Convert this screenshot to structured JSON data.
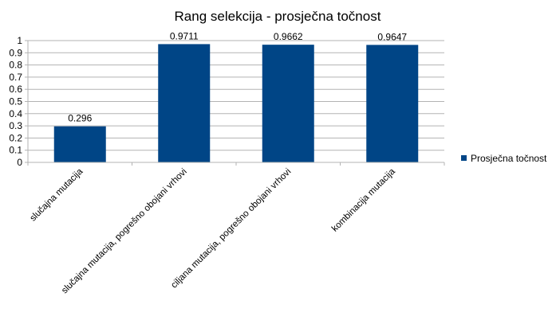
{
  "chart_data": {
    "type": "bar",
    "title": "Rang selekcija - prosječna točnost",
    "categories": [
      "slučajna mutacija",
      "slučajna mutacija, pogrešno obojani vrhovi",
      "ciljana mutacija, pogrešno obojani vrhovi",
      "kombinacija mutacija"
    ],
    "series": [
      {
        "name": "Prosječna točnost",
        "values": [
          0.296,
          0.9711,
          0.9662,
          0.9647
        ],
        "value_labels": [
          "0.296",
          "0.9711",
          "0.9662",
          "0.9647"
        ]
      }
    ],
    "y_ticks": [
      "0",
      "0.1",
      "0.2",
      "0.3",
      "0.4",
      "0.5",
      "0.6",
      "0.7",
      "0.8",
      "0.9",
      "1"
    ],
    "ylim": [
      0,
      1
    ],
    "grid": true,
    "legend_position": "right",
    "colors": {
      "bar": "#004586",
      "grid": "#b3b3b3",
      "axis": "#b3b3b3",
      "text": "#000000"
    }
  }
}
